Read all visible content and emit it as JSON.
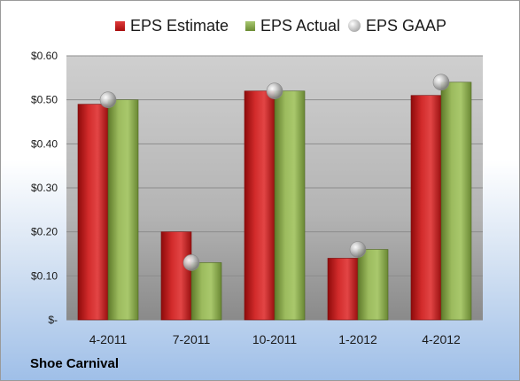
{
  "legend": {
    "estimate": "EPS Estimate",
    "actual": "EPS Actual",
    "gaap": "EPS GAAP"
  },
  "company": "Shoe Carnival",
  "colors": {
    "estimate": "#c0191c",
    "actual": "#8aaa4f",
    "gaap": "#b7b7b7"
  },
  "chart_data": {
    "type": "bar",
    "categories": [
      "4-2011",
      "7-2011",
      "10-2011",
      "1-2012",
      "4-2012"
    ],
    "series": [
      {
        "name": "EPS Estimate",
        "values": [
          0.49,
          0.2,
          0.52,
          0.14,
          0.51
        ]
      },
      {
        "name": "EPS Actual",
        "values": [
          0.5,
          0.13,
          0.52,
          0.16,
          0.54
        ]
      },
      {
        "name": "EPS GAAP",
        "values": [
          0.5,
          0.13,
          0.52,
          0.16,
          0.54
        ],
        "style": "bubble"
      }
    ],
    "yticks": [
      "$-",
      "$0.10",
      "$0.20",
      "$0.30",
      "$0.40",
      "$0.50",
      "$0.60"
    ],
    "ylim": [
      0,
      0.6
    ],
    "grid": true,
    "legend_position": "top"
  }
}
